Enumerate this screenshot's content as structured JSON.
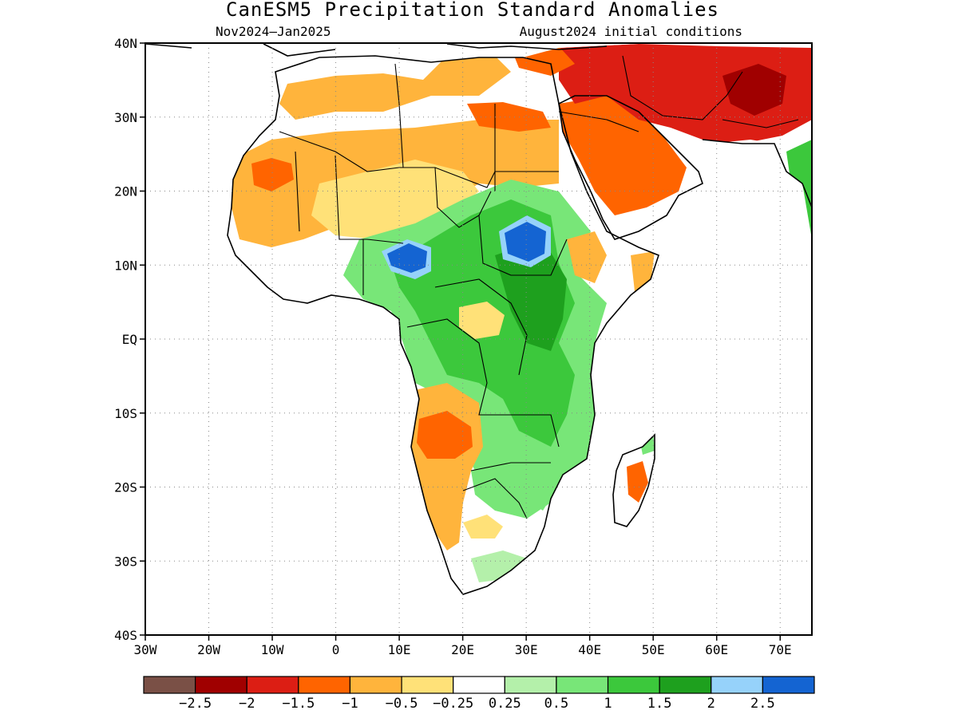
{
  "title": "CanESM5 Precipitation Standard Anomalies",
  "subtitle_left": "Nov2024–Jan2025",
  "subtitle_right": "August2024 initial conditions",
  "map_extent": {
    "lon_min": -30,
    "lon_max": 75,
    "lat_min": -40,
    "lat_max": 40
  },
  "lat_ticks": [
    {
      "lat": 40,
      "label": "40N"
    },
    {
      "lat": 30,
      "label": "30N"
    },
    {
      "lat": 20,
      "label": "20N"
    },
    {
      "lat": 10,
      "label": "10N"
    },
    {
      "lat": 0,
      "label": "EQ"
    },
    {
      "lat": -10,
      "label": "10S"
    },
    {
      "lat": -20,
      "label": "20S"
    },
    {
      "lat": -30,
      "label": "30S"
    },
    {
      "lat": -40,
      "label": "40S"
    }
  ],
  "lon_ticks": [
    {
      "lon": -30,
      "label": "30W"
    },
    {
      "lon": -20,
      "label": "20W"
    },
    {
      "lon": -10,
      "label": "10W"
    },
    {
      "lon": 0,
      "label": "0"
    },
    {
      "lon": 10,
      "label": "10E"
    },
    {
      "lon": 20,
      "label": "20E"
    },
    {
      "lon": 30,
      "label": "30E"
    },
    {
      "lon": 40,
      "label": "40E"
    },
    {
      "lon": 50,
      "label": "50E"
    },
    {
      "lon": 60,
      "label": "60E"
    },
    {
      "lon": 70,
      "label": "70E"
    }
  ],
  "colorbar": {
    "colors": [
      "#7a5046",
      "#a00000",
      "#dc1e14",
      "#ff6400",
      "#ffb43c",
      "#ffe178",
      "#ffffff",
      "#b4f0aa",
      "#78e678",
      "#3cc83c",
      "#1ea01e",
      "#96d2fa",
      "#1464d2"
    ],
    "labels": [
      "−2.5",
      "−2",
      "−1.5",
      "−1",
      "−0.5",
      "−0.25",
      "0.25",
      "0.5",
      "1",
      "1.5",
      "2",
      "2.5"
    ]
  },
  "anomaly_regions": [
    {
      "name": "sahara-west",
      "level": "-1",
      "color": "#ffb43c"
    },
    {
      "name": "mauritania-core",
      "level": "-1.5",
      "color": "#ff6400"
    },
    {
      "name": "arabia",
      "level": "-1.5",
      "color": "#ff6400"
    },
    {
      "name": "iran-afghanistan",
      "level": "-2",
      "color": "#dc1e14"
    },
    {
      "name": "afghanistan-core",
      "level": "-2.5",
      "color": "#a00000"
    },
    {
      "name": "sudan-south",
      "level": "2.5",
      "color": "#1464d2"
    },
    {
      "name": "chad-lake",
      "level": "2.5",
      "color": "#1464d2"
    },
    {
      "name": "central-africa",
      "level": "1",
      "color": "#78e678"
    },
    {
      "name": "angola",
      "level": "-1.5",
      "color": "#ff6400"
    },
    {
      "name": "madagascar",
      "level": "-1.5",
      "color": "#ff6400"
    }
  ]
}
